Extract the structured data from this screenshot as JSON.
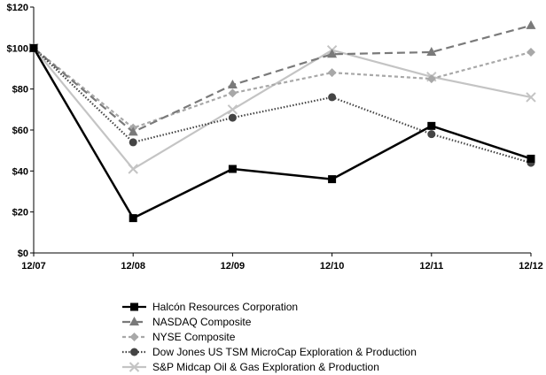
{
  "chart_data": {
    "type": "line",
    "title": "",
    "xlabel": "",
    "ylabel": "",
    "categories": [
      "12/07",
      "12/08",
      "12/09",
      "12/10",
      "12/11",
      "12/12"
    ],
    "y_ticks": [
      "$0",
      "$20",
      "$40",
      "$60",
      "$80",
      "$100",
      "$120"
    ],
    "ylim": [
      0,
      120
    ],
    "grid": false,
    "legend_position": "bottom",
    "series": [
      {
        "name": "Halcón Resources Corporation",
        "values": [
          100,
          17,
          41,
          36,
          62,
          46
        ],
        "color": "#000000",
        "dash": "solid",
        "marker": "square"
      },
      {
        "name": "NASDAQ Composite",
        "values": [
          100,
          59,
          82,
          97,
          98,
          111
        ],
        "color": "#7a7a7a",
        "dash": "long-dash",
        "marker": "triangle"
      },
      {
        "name": "NYSE Composite",
        "values": [
          100,
          61,
          78,
          88,
          85,
          98
        ],
        "color": "#a8a8a8",
        "dash": "short-dash",
        "marker": "diamond"
      },
      {
        "name": "Dow Jones US TSM MicroCap Exploration & Production",
        "values": [
          100,
          54,
          66,
          76,
          58,
          44
        ],
        "color": "#444444",
        "dash": "dotted",
        "marker": "circle"
      },
      {
        "name": "S&P Midcap Oil & Gas Exploration & Production",
        "values": [
          100,
          41,
          70,
          99,
          86,
          76
        ],
        "color": "#c4c4c4",
        "dash": "solid",
        "marker": "x"
      }
    ]
  }
}
